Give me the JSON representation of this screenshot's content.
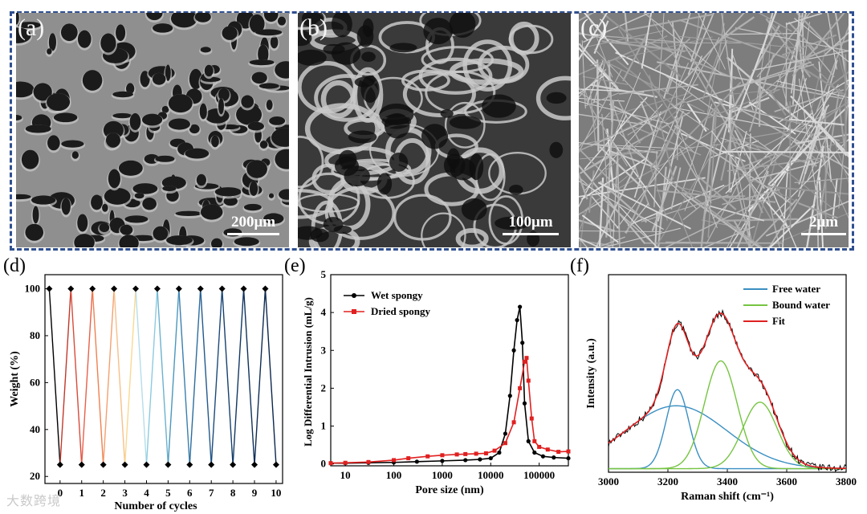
{
  "sem": {
    "a": {
      "label": "(a)",
      "scale": "200μm"
    },
    "b": {
      "label": "(b)",
      "scale": "100μm"
    },
    "c": {
      "label": "(c)",
      "scale": "2μm"
    }
  },
  "watermark": "大数跨境",
  "chart_data": [
    {
      "panel": "(d)",
      "type": "line",
      "xlabel": "Number of cycles",
      "ylabel": "Weight (%)",
      "xlim": [
        -0.7,
        10.3
      ],
      "ylim": [
        17,
        106
      ],
      "xticks": [
        0,
        1,
        2,
        3,
        4,
        5,
        6,
        7,
        8,
        9,
        10
      ],
      "yticks": [
        20,
        40,
        60,
        80,
        100
      ],
      "x": [
        -0.5,
        0,
        0.5,
        1,
        1.5,
        2,
        2.5,
        3,
        3.5,
        4,
        4.5,
        5,
        5.5,
        6,
        6.5,
        7,
        7.5,
        8,
        8.5,
        9,
        9.5,
        10
      ],
      "y": [
        100,
        25,
        100,
        25,
        100,
        25,
        100,
        25,
        100,
        25,
        100,
        25,
        100,
        25,
        100,
        25,
        100,
        25,
        100,
        25,
        100,
        25
      ],
      "segment_colors": [
        "#000000",
        "#c0392b",
        "#d84b3a",
        "#e8604a",
        "#f08050",
        "#f4a070",
        "#f6c08a",
        "#f9d992",
        "#b5ddea",
        "#8ccbe0",
        "#6bb2cf",
        "#4b97bd",
        "#3a7fae",
        "#2d6c9d",
        "#23598c",
        "#1c4a7a",
        "#16406e",
        "#123864",
        "#0f315b",
        "#0d2c54",
        "#0b274d"
      ]
    },
    {
      "panel": "(e)",
      "type": "line",
      "xlabel": "Pore size (nm)",
      "ylabel": "Log Differential Intrusion (mL/g)",
      "xscale": "log",
      "xlim": [
        5,
        400000
      ],
      "ylim": [
        -0.05,
        5
      ],
      "xticks": [
        10,
        100,
        1000,
        10000,
        100000
      ],
      "xticklabels": [
        "10",
        "100",
        "1000",
        "10000",
        "100000"
      ],
      "yticks": [
        0,
        1,
        2,
        3,
        4,
        5
      ],
      "legend": "top-left",
      "series": [
        {
          "name": "Wet spongy",
          "color": "#000000",
          "marker": "circle",
          "x": [
            5,
            10,
            30,
            100,
            300,
            1000,
            3000,
            6000,
            10000,
            15000,
            20000,
            25000,
            30000,
            35000,
            40000,
            45000,
            50000,
            60000,
            80000,
            120000,
            200000,
            400000
          ],
          "y": [
            0.02,
            0.02,
            0.03,
            0.04,
            0.06,
            0.08,
            0.1,
            0.12,
            0.15,
            0.3,
            0.8,
            1.8,
            3.0,
            3.8,
            4.15,
            3.2,
            1.6,
            0.6,
            0.3,
            0.2,
            0.17,
            0.15
          ]
        },
        {
          "name": "Dried spongy",
          "color": "#e02020",
          "marker": "square",
          "x": [
            5,
            10,
            30,
            100,
            200,
            500,
            1000,
            2000,
            3000,
            5000,
            8000,
            12000,
            20000,
            30000,
            40000,
            50000,
            55000,
            60000,
            70000,
            80000,
            100000,
            150000,
            250000,
            400000
          ],
          "y": [
            0.02,
            0.03,
            0.05,
            0.1,
            0.15,
            0.2,
            0.23,
            0.25,
            0.26,
            0.27,
            0.28,
            0.35,
            0.55,
            1.1,
            2.0,
            2.7,
            2.8,
            2.2,
            1.2,
            0.6,
            0.45,
            0.38,
            0.32,
            0.33
          ]
        }
      ]
    },
    {
      "panel": "(f)",
      "type": "line",
      "xlabel": "Raman shift (cm⁻¹)",
      "ylabel": "Intensity (a.u.)",
      "xlim": [
        3000,
        3800
      ],
      "ylim": [
        0,
        1.1
      ],
      "xticks": [
        3000,
        3200,
        3400,
        3600,
        3800
      ],
      "yticks": [],
      "legend": "top-right",
      "series": [
        {
          "name": "Free water",
          "color": "#3a8fc2"
        },
        {
          "name": "Bound water",
          "color": "#76c442"
        },
        {
          "name": "Fit",
          "color": "#e02020"
        }
      ],
      "components": [
        {
          "group": "Free water",
          "center": 3232,
          "height": 0.44,
          "width": 38
        },
        {
          "group": "Free water",
          "center": 3228,
          "height": 0.35,
          "width": 170
        },
        {
          "group": "Bound water",
          "center": 3378,
          "height": 0.6,
          "width": 55
        },
        {
          "group": "Bound water",
          "center": 3510,
          "height": 0.37,
          "width": 58
        }
      ],
      "baseline": 0.02
    }
  ]
}
